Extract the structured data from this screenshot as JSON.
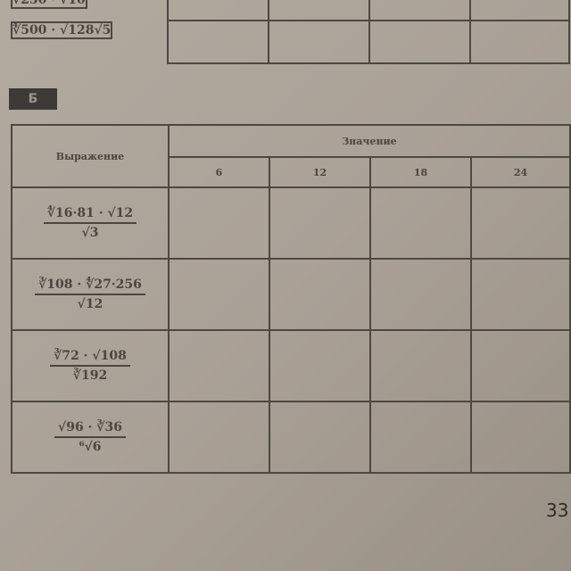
{
  "top_table": {
    "rows": [
      "∜250 · √10",
      "∜500 · √128√5"
    ]
  },
  "section_badge": "Б",
  "table": {
    "header_expression": "Выражение",
    "header_value": "Значение",
    "value_columns": [
      "6",
      "12",
      "18",
      "24"
    ],
    "rows": [
      {
        "numerator": "∜16·81 · √12",
        "denominator": "√3"
      },
      {
        "numerator": "∛108 · ∜27·256",
        "denominator": "√12"
      },
      {
        "numerator": "∛72 · √108",
        "denominator": "∛192"
      },
      {
        "numerator": "√96 · ∛36",
        "denominator": "⁶√6"
      }
    ]
  },
  "page_number": "33"
}
